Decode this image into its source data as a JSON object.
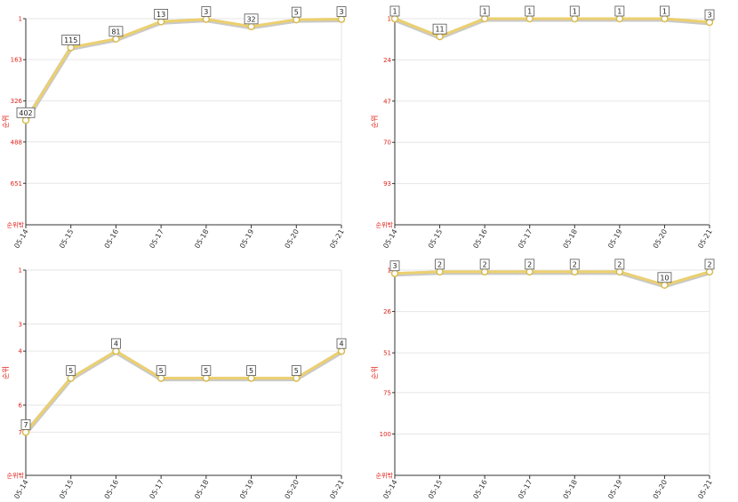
{
  "chart_data": [
    {
      "type": "line",
      "x": [
        "05-14",
        "05-15",
        "05-16",
        "05-17",
        "05-18",
        "05-19",
        "05-20",
        "05-21"
      ],
      "series": [
        {
          "values": [
            402,
            115,
            81,
            13,
            3,
            32,
            5,
            3
          ]
        }
      ],
      "y_ticks": [
        1,
        163,
        326,
        488,
        651
      ],
      "y_bottom_label": "순위밖",
      "ylabel": "순위",
      "ylim": [
        1,
        815
      ],
      "reversed": true,
      "grid": true,
      "line_color": "#ecd06e"
    },
    {
      "type": "line",
      "x": [
        "05-14",
        "05-15",
        "05-16",
        "05-17",
        "05-18",
        "05-19",
        "05-20",
        "05-21"
      ],
      "series": [
        {
          "values": [
            1,
            11,
            1,
            1,
            1,
            1,
            1,
            3
          ]
        }
      ],
      "y_ticks": [
        1,
        24,
        47,
        70,
        93
      ],
      "y_bottom_label": "순위밖",
      "ylabel": "순위",
      "ylim": [
        1,
        116
      ],
      "reversed": true,
      "grid": true,
      "line_color": "#ecd06e"
    },
    {
      "type": "line",
      "x": [
        "05-14",
        "05-15",
        "05-16",
        "05-17",
        "05-18",
        "05-19",
        "05-20",
        "05-21"
      ],
      "series": [
        {
          "values": [
            7,
            5,
            4,
            5,
            5,
            5,
            5,
            4
          ]
        }
      ],
      "y_ticks": [
        1,
        3,
        4,
        6,
        7
      ],
      "y_bottom_label": "순위밖",
      "ylabel": "순위",
      "ylim": [
        1,
        8.6
      ],
      "reversed": true,
      "grid": true,
      "line_color": "#ecd06e"
    },
    {
      "type": "line",
      "x": [
        "05-14",
        "05-15",
        "05-16",
        "05-17",
        "05-18",
        "05-19",
        "05-20",
        "05-21"
      ],
      "series": [
        {
          "values": [
            3,
            2,
            2,
            2,
            2,
            2,
            10,
            2
          ]
        }
      ],
      "y_ticks": [
        1,
        26,
        51,
        75,
        100
      ],
      "y_bottom_label": "순위밖",
      "ylabel": "순위",
      "ylim": [
        1,
        125
      ],
      "reversed": true,
      "grid": true,
      "line_color": "#ecd06e"
    }
  ]
}
